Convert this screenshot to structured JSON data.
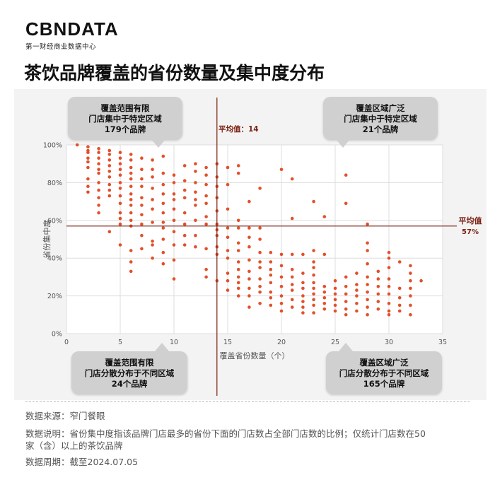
{
  "logo": {
    "brand": "CBNDATA",
    "subtitle": "第一财经商业数据中心"
  },
  "headline": "茶饮品牌覆盖的省份数量及集中度分布",
  "callouts": {
    "top_left": [
      "覆盖范围有限",
      "门店集中于特定区域",
      "179个品牌"
    ],
    "top_right": [
      "覆盖区域广泛",
      "门店集中于特定区域",
      "21个品牌"
    ],
    "bottom_left": [
      "覆盖范围有限",
      "门店分散分布于不同区域",
      "24个品牌"
    ],
    "bottom_right": [
      "覆盖区域广泛",
      "门店分散分布于不同区域",
      "165个品牌"
    ]
  },
  "footer": {
    "source": "数据来源：窄门餐眼",
    "note_line1": "数据说明：省份集中度指该品牌门店最多的省份下面的门店数占全部门店数的比例；仅统计门店数在50",
    "note_line2": "家（含）以上的茶饮品牌",
    "period": "数据周期：截至2024.07.05"
  },
  "colors": {
    "dots": "#e2502a",
    "mean_lines": "#7a1f10",
    "grid": "#dddddd"
  },
  "chart_data": {
    "type": "scatter",
    "xlabel": "覆盖省份数量（个）",
    "ylabel": "省份集中度",
    "xlim": [
      0,
      35
    ],
    "ylim": [
      0,
      100
    ],
    "x_ticks": [
      0,
      5,
      10,
      15,
      20,
      25,
      30,
      35
    ],
    "y_ticks": [
      0,
      20,
      40,
      60,
      80,
      100
    ],
    "y_tick_labels": [
      "0%",
      "20%",
      "40%",
      "60%",
      "80%",
      "100%"
    ],
    "grid": true,
    "mean_x": 14,
    "mean_x_label": "平均值：14",
    "mean_y": 57,
    "mean_y_label": "平均值",
    "mean_y_value_label": "57%",
    "points": [
      [
        1,
        100
      ],
      [
        2,
        99
      ],
      [
        2,
        97
      ],
      [
        2,
        96
      ],
      [
        2,
        93
      ],
      [
        2,
        91
      ],
      [
        2,
        88
      ],
      [
        2,
        82
      ],
      [
        2,
        78
      ],
      [
        2,
        75
      ],
      [
        3,
        98
      ],
      [
        3,
        96
      ],
      [
        3,
        93
      ],
      [
        3,
        90
      ],
      [
        3,
        87
      ],
      [
        3,
        85
      ],
      [
        3,
        80
      ],
      [
        3,
        76
      ],
      [
        3,
        72
      ],
      [
        3,
        68
      ],
      [
        3,
        64
      ],
      [
        4,
        97
      ],
      [
        4,
        95
      ],
      [
        4,
        92
      ],
      [
        4,
        89
      ],
      [
        4,
        86
      ],
      [
        4,
        83
      ],
      [
        4,
        79
      ],
      [
        4,
        76
      ],
      [
        4,
        73
      ],
      [
        4,
        54
      ],
      [
        5,
        96
      ],
      [
        5,
        93
      ],
      [
        5,
        90
      ],
      [
        5,
        87
      ],
      [
        5,
        84
      ],
      [
        5,
        80
      ],
      [
        5,
        77
      ],
      [
        5,
        73
      ],
      [
        5,
        69
      ],
      [
        5,
        64
      ],
      [
        5,
        61
      ],
      [
        5,
        58
      ],
      [
        5,
        47
      ],
      [
        6,
        95
      ],
      [
        6,
        92
      ],
      [
        6,
        88
      ],
      [
        6,
        85
      ],
      [
        6,
        82
      ],
      [
        6,
        78
      ],
      [
        6,
        74
      ],
      [
        6,
        71
      ],
      [
        6,
        68
      ],
      [
        6,
        64
      ],
      [
        6,
        60
      ],
      [
        6,
        57
      ],
      [
        6,
        44
      ],
      [
        6,
        38
      ],
      [
        6,
        33
      ],
      [
        7,
        93
      ],
      [
        7,
        87
      ],
      [
        7,
        82
      ],
      [
        7,
        78
      ],
      [
        7,
        72
      ],
      [
        7,
        68
      ],
      [
        7,
        63
      ],
      [
        7,
        58
      ],
      [
        7,
        52
      ],
      [
        7,
        45
      ],
      [
        8,
        92
      ],
      [
        8,
        87
      ],
      [
        8,
        83
      ],
      [
        8,
        77
      ],
      [
        8,
        71
      ],
      [
        8,
        66
      ],
      [
        8,
        59
      ],
      [
        8,
        49
      ],
      [
        8,
        47
      ],
      [
        8,
        40
      ],
      [
        9,
        94
      ],
      [
        9,
        85
      ],
      [
        9,
        79
      ],
      [
        9,
        74
      ],
      [
        9,
        69
      ],
      [
        9,
        64
      ],
      [
        9,
        59
      ],
      [
        9,
        56
      ],
      [
        9,
        50
      ],
      [
        9,
        43
      ],
      [
        9,
        37
      ],
      [
        10,
        84
      ],
      [
        10,
        80
      ],
      [
        10,
        74
      ],
      [
        10,
        71
      ],
      [
        10,
        66
      ],
      [
        10,
        60
      ],
      [
        10,
        54
      ],
      [
        10,
        47
      ],
      [
        10,
        39
      ],
      [
        10,
        29
      ],
      [
        11,
        89
      ],
      [
        11,
        81
      ],
      [
        11,
        76
      ],
      [
        11,
        72
      ],
      [
        11,
        64
      ],
      [
        11,
        58
      ],
      [
        11,
        52
      ],
      [
        11,
        47
      ],
      [
        12,
        90
      ],
      [
        12,
        86
      ],
      [
        12,
        80
      ],
      [
        12,
        75
      ],
      [
        12,
        71
      ],
      [
        12,
        68
      ],
      [
        12,
        60
      ],
      [
        12,
        52
      ],
      [
        12,
        46
      ],
      [
        13,
        88
      ],
      [
        13,
        84
      ],
      [
        13,
        79
      ],
      [
        13,
        73
      ],
      [
        13,
        69
      ],
      [
        13,
        62
      ],
      [
        13,
        58
      ],
      [
        13,
        45
      ],
      [
        13,
        34
      ],
      [
        13,
        30
      ],
      [
        14,
        90
      ],
      [
        14,
        83
      ],
      [
        14,
        78
      ],
      [
        14,
        72
      ],
      [
        14,
        65
      ],
      [
        14,
        58
      ],
      [
        14,
        55
      ],
      [
        14,
        52
      ],
      [
        14,
        46
      ],
      [
        14,
        42
      ],
      [
        14,
        28
      ],
      [
        15,
        88
      ],
      [
        15,
        79
      ],
      [
        15,
        66
      ],
      [
        15,
        56
      ],
      [
        15,
        51
      ],
      [
        15,
        44
      ],
      [
        15,
        40
      ],
      [
        15,
        32
      ],
      [
        15,
        28
      ],
      [
        15,
        23
      ],
      [
        16,
        89
      ],
      [
        16,
        85
      ],
      [
        16,
        60
      ],
      [
        16,
        56
      ],
      [
        16,
        48
      ],
      [
        16,
        44
      ],
      [
        16,
        38
      ],
      [
        16,
        34
      ],
      [
        16,
        30
      ],
      [
        16,
        27
      ],
      [
        16,
        24
      ],
      [
        16,
        20
      ],
      [
        17,
        70
      ],
      [
        17,
        56
      ],
      [
        17,
        51
      ],
      [
        17,
        46
      ],
      [
        17,
        39
      ],
      [
        17,
        33
      ],
      [
        17,
        29
      ],
      [
        17,
        24
      ],
      [
        17,
        20
      ],
      [
        17,
        14
      ],
      [
        18,
        77
      ],
      [
        18,
        56
      ],
      [
        18,
        50
      ],
      [
        18,
        43
      ],
      [
        18,
        38
      ],
      [
        18,
        35
      ],
      [
        18,
        29
      ],
      [
        18,
        25
      ],
      [
        18,
        22
      ],
      [
        18,
        16
      ],
      [
        19,
        43
      ],
      [
        19,
        38
      ],
      [
        19,
        34
      ],
      [
        19,
        31
      ],
      [
        19,
        27
      ],
      [
        19,
        22
      ],
      [
        19,
        19
      ],
      [
        19,
        15
      ],
      [
        20,
        87
      ],
      [
        20,
        42
      ],
      [
        20,
        36
      ],
      [
        20,
        30
      ],
      [
        20,
        25
      ],
      [
        20,
        20
      ],
      [
        20,
        16
      ],
      [
        20,
        12
      ],
      [
        21,
        82
      ],
      [
        21,
        61
      ],
      [
        21,
        42
      ],
      [
        21,
        34
      ],
      [
        21,
        30
      ],
      [
        21,
        26
      ],
      [
        21,
        23
      ],
      [
        21,
        18
      ],
      [
        21,
        14
      ],
      [
        22,
        42
      ],
      [
        22,
        32
      ],
      [
        22,
        27
      ],
      [
        22,
        24
      ],
      [
        22,
        20
      ],
      [
        22,
        17
      ],
      [
        22,
        14
      ],
      [
        22,
        11
      ],
      [
        23,
        70
      ],
      [
        23,
        44
      ],
      [
        23,
        38
      ],
      [
        23,
        35
      ],
      [
        23,
        31
      ],
      [
        23,
        27
      ],
      [
        23,
        24
      ],
      [
        23,
        21
      ],
      [
        23,
        18
      ],
      [
        23,
        15
      ],
      [
        23,
        11
      ],
      [
        24,
        62
      ],
      [
        24,
        42
      ],
      [
        24,
        25
      ],
      [
        24,
        22
      ],
      [
        24,
        19
      ],
      [
        24,
        16
      ],
      [
        24,
        13
      ],
      [
        25,
        28
      ],
      [
        25,
        24
      ],
      [
        25,
        21
      ],
      [
        25,
        18
      ],
      [
        25,
        15
      ],
      [
        25,
        12
      ],
      [
        26,
        84
      ],
      [
        26,
        69
      ],
      [
        26,
        30
      ],
      [
        26,
        25
      ],
      [
        26,
        21
      ],
      [
        26,
        17
      ],
      [
        26,
        13
      ],
      [
        26,
        10
      ],
      [
        27,
        32
      ],
      [
        27,
        26
      ],
      [
        27,
        23
      ],
      [
        27,
        20
      ],
      [
        27,
        16
      ],
      [
        27,
        12
      ],
      [
        28,
        58
      ],
      [
        28,
        48
      ],
      [
        28,
        44
      ],
      [
        28,
        37
      ],
      [
        28,
        30
      ],
      [
        28,
        26
      ],
      [
        28,
        22
      ],
      [
        28,
        18
      ],
      [
        28,
        14
      ],
      [
        28,
        10
      ],
      [
        29,
        33
      ],
      [
        29,
        29
      ],
      [
        29,
        25
      ],
      [
        29,
        21
      ],
      [
        29,
        17
      ],
      [
        29,
        13
      ],
      [
        30,
        43
      ],
      [
        30,
        40
      ],
      [
        30,
        35
      ],
      [
        30,
        29
      ],
      [
        30,
        25
      ],
      [
        30,
        21
      ],
      [
        30,
        16
      ],
      [
        30,
        12
      ],
      [
        30,
        10
      ],
      [
        31,
        38
      ],
      [
        31,
        24
      ],
      [
        31,
        19
      ],
      [
        31,
        15
      ],
      [
        31,
        12
      ],
      [
        32,
        36
      ],
      [
        32,
        32
      ],
      [
        32,
        28
      ],
      [
        32,
        24
      ],
      [
        32,
        20
      ],
      [
        32,
        15
      ],
      [
        32,
        10
      ],
      [
        33,
        28
      ]
    ]
  }
}
